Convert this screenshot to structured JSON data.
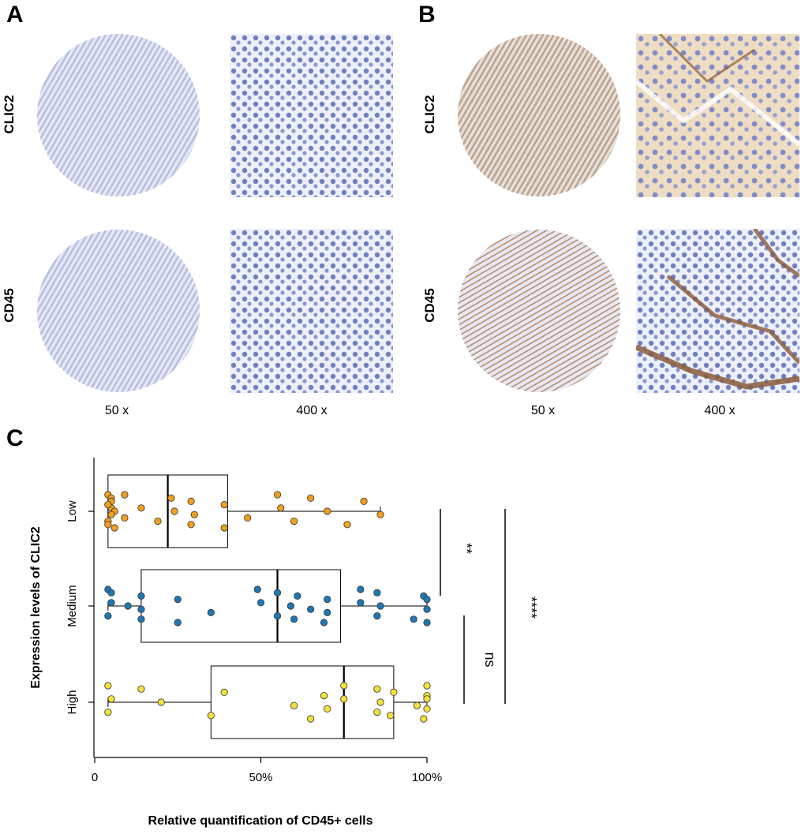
{
  "panels": {
    "A": {
      "letter": "A",
      "row1_label": "CLIC2",
      "row2_label": "CD45",
      "mag_left": "50 x",
      "mag_right": "400 x"
    },
    "B": {
      "letter": "B",
      "row1_label": "CLIC2",
      "row2_label": "CD45",
      "mag_left": "50 x",
      "mag_right": "400 x"
    },
    "C": {
      "letter": "C"
    }
  },
  "colors": {
    "tissue_blue": "#c7cbe3",
    "nuclei_blue": "#6f7fc0",
    "stain_brown": "#8a5a3a",
    "tan_bg": "#e9d9c4",
    "low": "#f0a020",
    "medium": "#1f78b4",
    "high": "#f2e03c"
  },
  "chart_data": {
    "type": "boxplot",
    "xlabel": "Relative quantification of CD45+ cells",
    "ylabel": "Expression levels of CLIC2",
    "xlim": [
      0,
      1.04
    ],
    "xticks": [
      0,
      0.5,
      1.0
    ],
    "xtick_labels": [
      "0",
      "50%",
      "100%"
    ],
    "categories": [
      "Low",
      "Medium",
      "High"
    ],
    "series": [
      {
        "name": "Low",
        "color": "#f0a020",
        "box": {
          "min": 0.04,
          "q1": 0.04,
          "median": 0.22,
          "q3": 0.4,
          "max": 0.86
        },
        "points": [
          0.04,
          0.05,
          0.04,
          0.05,
          0.06,
          0.04,
          0.05,
          0.05,
          0.06,
          0.04,
          0.09,
          0.09,
          0.14,
          0.19,
          0.23,
          0.24,
          0.29,
          0.29,
          0.3,
          0.39,
          0.39,
          0.46,
          0.55,
          0.56,
          0.6,
          0.65,
          0.7,
          0.76,
          0.81,
          0.86
        ]
      },
      {
        "name": "Medium",
        "color": "#1f78b4",
        "box": {
          "min": 0.04,
          "q1": 0.14,
          "median": 0.55,
          "q3": 0.74,
          "max": 1.0
        },
        "points": [
          0.04,
          0.05,
          0.04,
          0.05,
          0.1,
          0.14,
          0.14,
          0.14,
          0.25,
          0.25,
          0.35,
          0.49,
          0.5,
          0.55,
          0.55,
          0.59,
          0.6,
          0.61,
          0.65,
          0.69,
          0.7,
          0.7,
          0.8,
          0.8,
          0.85,
          0.85,
          0.86,
          0.96,
          0.99,
          1.0,
          1.0,
          1.0
        ]
      },
      {
        "name": "High",
        "color": "#f2e03c",
        "box": {
          "min": 0.04,
          "q1": 0.35,
          "median": 0.75,
          "q3": 0.9,
          "max": 1.0
        },
        "points": [
          0.04,
          0.05,
          0.04,
          0.14,
          0.2,
          0.35,
          0.39,
          0.6,
          0.65,
          0.69,
          0.7,
          0.75,
          0.75,
          0.85,
          0.85,
          0.86,
          0.89,
          0.9,
          0.97,
          0.99,
          1.0,
          1.0,
          1.0,
          1.0
        ]
      }
    ],
    "significance": [
      {
        "from": "Low",
        "to": "Medium",
        "label": "**"
      },
      {
        "from": "Medium",
        "to": "High",
        "label": "ns"
      },
      {
        "from": "Low",
        "to": "High",
        "label": "****"
      }
    ]
  }
}
